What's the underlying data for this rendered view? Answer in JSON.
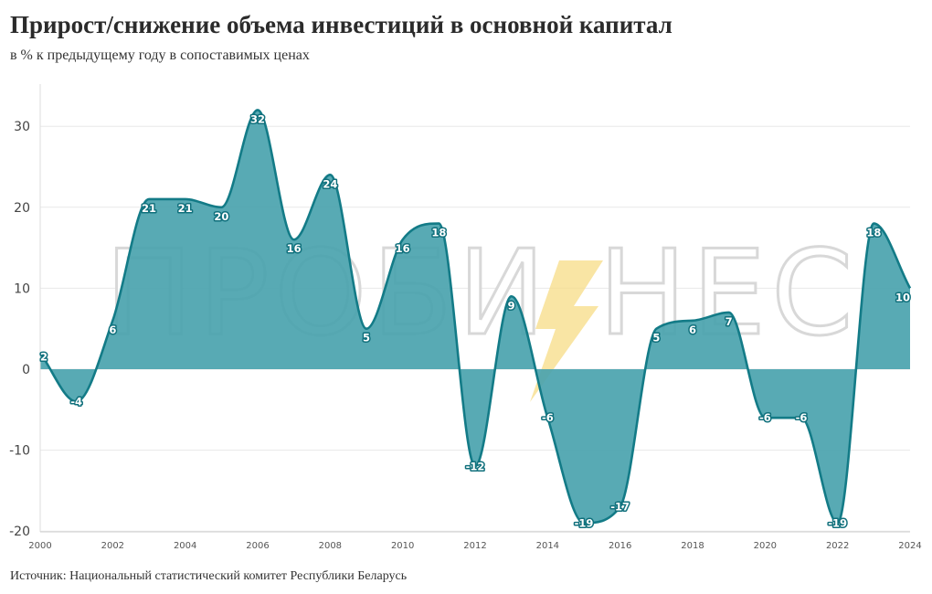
{
  "header": {
    "title": "Прирост/снижение объема инвестиций в основной капитал",
    "subtitle": "в % к предыдущему году в сопоставимых ценах"
  },
  "footer": {
    "source": "Источник: Национальный статистический комитет Республики Беларусь"
  },
  "watermark": {
    "text_left": "ПРОБИ",
    "text_right": "НЕС"
  },
  "colors": {
    "area_fill": "#4aa3ae",
    "line": "#137b87",
    "label_outline": "#10707c",
    "grid": "#e8e8e8",
    "bolt": "#f7dc86"
  },
  "chart_data": {
    "type": "area",
    "x": [
      2000,
      2001,
      2002,
      2003,
      2004,
      2005,
      2006,
      2007,
      2008,
      2009,
      2010,
      2011,
      2012,
      2013,
      2014,
      2015,
      2016,
      2017,
      2018,
      2019,
      2020,
      2021,
      2022,
      2023,
      2024
    ],
    "series": [
      {
        "values": [
          2,
          -4,
          6,
          21,
          21,
          20,
          32,
          16,
          24,
          5,
          16,
          18,
          -12,
          9,
          -6,
          -19,
          -17,
          5,
          6,
          7,
          -6,
          -6,
          -19,
          18,
          10
        ]
      }
    ],
    "xlim": [
      2000,
      2024
    ],
    "ylim": [
      -20,
      35
    ],
    "yticks": [
      30,
      20,
      10,
      0,
      -10,
      -20
    ],
    "xticks": [
      2000,
      2002,
      2004,
      2006,
      2008,
      2010,
      2012,
      2014,
      2016,
      2018,
      2020,
      2022,
      2024
    ],
    "grid": true,
    "legend": "none"
  }
}
